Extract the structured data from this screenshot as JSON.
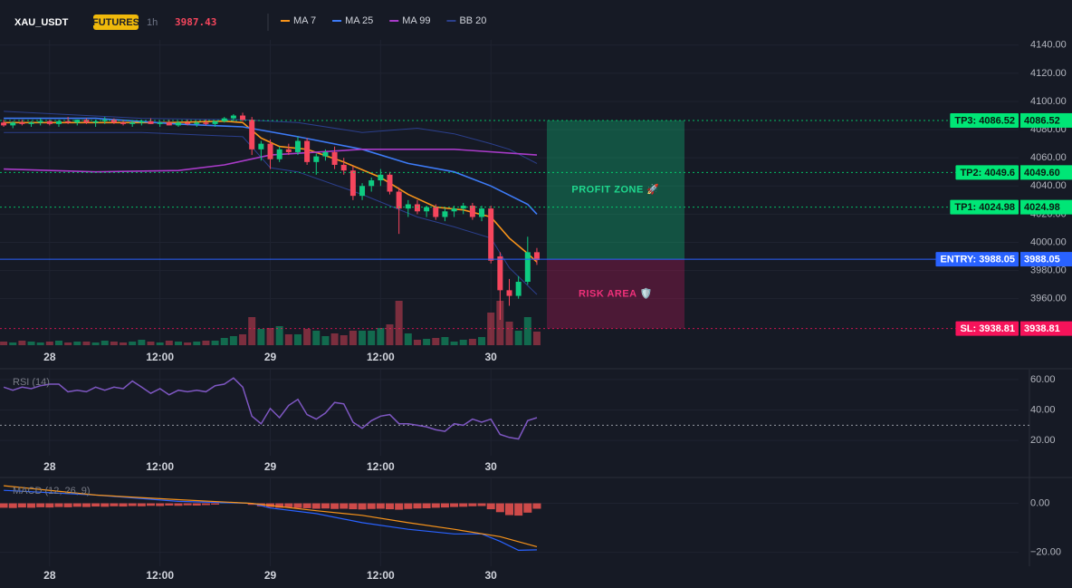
{
  "chart_data": [
    {
      "type": "candlestick",
      "title": "XAU_USDT",
      "badge": "FUTURES",
      "interval": "1h",
      "last_price": 3987.43,
      "open": [
        4085,
        4083,
        4085,
        4084,
        4085,
        4086,
        4084,
        4086,
        4085,
        4087,
        4085,
        4086,
        4087,
        4085,
        4084,
        4085,
        4086,
        4084,
        4085,
        4083,
        4085,
        4084,
        4085,
        4084,
        4086,
        4088,
        4090,
        4087,
        4066,
        4070,
        4059,
        4066,
        4064,
        4072,
        4057,
        4061,
        4064,
        4055,
        4051,
        4033,
        4040,
        4044,
        4048,
        4036,
        4024,
        4027,
        4022,
        4025,
        4018,
        4022,
        4024,
        4026,
        4018,
        4024,
        3990,
        3966,
        3962,
        3972,
        3993
      ],
      "high": [
        4087,
        4086,
        4087,
        4086,
        4088,
        4087,
        4087,
        4089,
        4087,
        4088,
        4087,
        4089,
        4088,
        4087,
        4086,
        4087,
        4088,
        4086,
        4087,
        4086,
        4087,
        4086,
        4087,
        4086,
        4089,
        4091,
        4092,
        4089,
        4072,
        4073,
        4068,
        4070,
        4075,
        4074,
        4063,
        4066,
        4068,
        4060,
        4054,
        4042,
        4046,
        4052,
        4050,
        4039,
        4030,
        4030,
        4026,
        4027,
        4024,
        4026,
        4028,
        4028,
        4026,
        4026,
        3993,
        3974,
        3976,
        4004,
        3996
      ],
      "low": [
        4082,
        4081,
        4083,
        4082,
        4083,
        4083,
        4082,
        4084,
        4083,
        4084,
        4082,
        4084,
        4084,
        4083,
        4082,
        4083,
        4084,
        4082,
        4083,
        4082,
        4083,
        4082,
        4083,
        4082,
        4085,
        4086,
        4086,
        4062,
        4058,
        4052,
        4057,
        4062,
        4062,
        4055,
        4048,
        4058,
        4052,
        4048,
        4030,
        4030,
        4036,
        4040,
        4034,
        4006,
        4018,
        4020,
        4018,
        4016,
        4015,
        4018,
        4020,
        4016,
        4015,
        3985,
        3945,
        3955,
        3960,
        3970,
        3984
      ],
      "close": [
        4083,
        4085,
        4084,
        4085,
        4086,
        4084,
        4086,
        4085,
        4087,
        4085,
        4086,
        4087,
        4085,
        4084,
        4085,
        4086,
        4084,
        4085,
        4083,
        4085,
        4084,
        4085,
        4084,
        4086,
        4088,
        4090,
        4087,
        4066,
        4070,
        4059,
        4066,
        4064,
        4072,
        4057,
        4061,
        4064,
        4055,
        4051,
        4033,
        4040,
        4044,
        4048,
        4036,
        4024,
        4027,
        4022,
        4025,
        4018,
        4022,
        4024,
        4026,
        4018,
        4024,
        3987,
        3966,
        3962,
        3972,
        3993,
        3987.43
      ],
      "volume": [
        4,
        3,
        5,
        4,
        3,
        4,
        5,
        3,
        4,
        4,
        3,
        5,
        4,
        3,
        4,
        6,
        4,
        3,
        5,
        4,
        3,
        4,
        5,
        5,
        8,
        10,
        12,
        31,
        18,
        19,
        21,
        12,
        12,
        18,
        16,
        10,
        13,
        11,
        16,
        16,
        16,
        19,
        23,
        49,
        13,
        6,
        7,
        8,
        9,
        4,
        6,
        7,
        9,
        36,
        49,
        26,
        16,
        31,
        15
      ],
      "volume_ylim": [
        0,
        100
      ],
      "up_color": "#0ecb81",
      "down_color": "#f6465d",
      "series": [
        {
          "name": "MA 7",
          "color": "#f7931a",
          "x": [
            0,
            6,
            12,
            18,
            24,
            26,
            28,
            30,
            33,
            37,
            41,
            44,
            47,
            50,
            53,
            55,
            57,
            58
          ],
          "values": [
            4085,
            4085,
            4085,
            4085,
            4086,
            4085,
            4074,
            4068,
            4066,
            4057,
            4046,
            4034,
            4025,
            4023,
            4018,
            4003,
            3992,
            3986
          ]
        },
        {
          "name": "MA 25",
          "color": "#3d7bf7",
          "x": [
            0,
            10,
            19,
            26,
            32,
            39,
            44,
            49,
            53,
            57,
            58
          ],
          "values": [
            4088,
            4088,
            4084,
            4082,
            4075,
            4066,
            4056,
            4050,
            4040,
            4027,
            4020
          ]
        },
        {
          "name": "MA 99",
          "color": "#a93bc9",
          "x": [
            0,
            10,
            19,
            24,
            29,
            39,
            49,
            58
          ],
          "values": [
            4052,
            4050,
            4051,
            4055,
            4062,
            4066,
            4066,
            4062
          ]
        },
        {
          "name": "BB 20",
          "color": "#2b3f8c",
          "x": [
            0,
            15,
            26,
            29,
            32,
            39,
            45,
            49,
            53,
            55,
            58
          ],
          "upper": [
            4093,
            4088,
            4087,
            4086,
            4085,
            4078,
            4081,
            4077,
            4070,
            4066,
            4056
          ],
          "lower": [
            4078,
            4078,
            4075,
            4053,
            4050,
            4034,
            4018,
            4011,
            4003,
            3982,
            3963
          ]
        }
      ],
      "levels": [
        {
          "label": "TP3: 4086.52",
          "axis_label": "4086.52",
          "value": 4086.52,
          "color": "#00e676",
          "text_color": "#0b1a12"
        },
        {
          "label": "TP2: 4049.6",
          "axis_label": "4049.60",
          "value": 4049.6,
          "color": "#00e676",
          "text_color": "#0b1a12"
        },
        {
          "label": "TP1: 4024.98",
          "axis_label": "4024.98",
          "value": 4024.98,
          "color": "#00e676",
          "text_color": "#0b1a12"
        },
        {
          "label": "ENTRY: 3988.05",
          "axis_label": "3988.05",
          "value": 3988.05,
          "color": "#2962ff",
          "text_color": "#ffffff"
        },
        {
          "label": "SL: 3938.81",
          "axis_label": "3938.81",
          "value": 3938.81,
          "color": "#f6135a",
          "text_color": "#ffffff"
        }
      ],
      "zones": [
        {
          "label": "PROFIT ZONE 🚀",
          "ylim": [
            3988.05,
            4086.52
          ],
          "color": "#0ecb81",
          "text_color": "#1fd88e"
        },
        {
          "label": "RISK AREA 🛡️",
          "ylim": [
            3938.81,
            3988.05
          ],
          "color": "#c2185b",
          "text_color": "#f0307a"
        }
      ],
      "xlim": [
        -0.4,
        110.4
      ],
      "xticks": [
        {
          "value": 5,
          "label": "28"
        },
        {
          "value": 17,
          "label": "12:00"
        },
        {
          "value": 29,
          "label": "29"
        },
        {
          "value": 41,
          "label": "12:00"
        },
        {
          "value": 53,
          "label": "30"
        }
      ],
      "ylim": [
        3927,
        4145
      ],
      "yticks": [
        {
          "value": 3960,
          "label": "3960.00"
        },
        {
          "value": 3980,
          "label": "3980.00"
        },
        {
          "value": 4000,
          "label": "4000.00"
        },
        {
          "value": 4020,
          "label": "4020.00"
        },
        {
          "value": 4040,
          "label": "4040.00"
        },
        {
          "value": 4060,
          "label": "4060.00"
        },
        {
          "value": 4080,
          "label": "4080.00"
        },
        {
          "value": 4100,
          "label": "4100.00"
        },
        {
          "value": 4120,
          "label": "4120.00"
        },
        {
          "value": 4140,
          "label": "4140.00"
        }
      ],
      "grid": true
    },
    {
      "type": "line",
      "title": "RSI (14)",
      "color": "#7e57c2",
      "values": [
        55,
        53,
        55,
        54,
        56,
        57,
        57,
        52,
        53,
        52,
        55,
        53,
        55,
        54,
        59,
        55,
        51,
        54,
        50,
        53,
        52,
        53,
        52,
        56,
        57,
        61,
        55,
        36,
        31,
        41,
        35,
        43,
        47,
        37,
        34,
        38,
        45,
        44,
        32,
        28,
        33,
        36,
        37,
        31,
        31,
        30,
        29,
        27,
        26,
        31,
        30,
        34,
        32,
        34,
        24,
        22,
        21,
        33,
        35
      ],
      "ref_line": 30,
      "ylim": [
        10,
        66.5
      ],
      "yticks": [
        {
          "value": 60,
          "label": "60.00"
        },
        {
          "value": 40,
          "label": "40.00"
        },
        {
          "value": 20,
          "label": "20.00"
        }
      ]
    },
    {
      "type": "macd",
      "title": "MACD (12, 26, 9)",
      "histogram": [
        -1.8,
        -1.9,
        -1.7,
        -1.8,
        -1.6,
        -1.7,
        -1.5,
        -1.6,
        -1.4,
        -1.5,
        -1.3,
        -1.4,
        -1.2,
        -1.3,
        -1.1,
        -1.2,
        -1.0,
        -1.1,
        -0.9,
        -1.0,
        -0.8,
        -0.9,
        -0.7,
        -0.5,
        0.3,
        0.5,
        0.4,
        -0.6,
        -1.2,
        -1.5,
        -1.8,
        -1.6,
        -1.9,
        -2.0,
        -2.2,
        -2.1,
        -2.3,
        -2.2,
        -2.4,
        -2.5,
        -2.3,
        -2.2,
        -2.4,
        -2.6,
        -2.3,
        -2.1,
        -2.0,
        -1.8,
        -1.7,
        -1.5,
        -1.4,
        -1.2,
        -1.1,
        -2.4,
        -3.6,
        -4.8,
        -5.0,
        -3.8,
        -2.2
      ],
      "up_color": "#26a69a",
      "down_color": "#ef5350",
      "series": [
        {
          "color": "#2962ff",
          "x": [
            0,
            10,
            19,
            27,
            29,
            34,
            39,
            44,
            49,
            52,
            54,
            56,
            58
          ],
          "values": [
            5.3,
            3.4,
            0.8,
            0,
            -1.9,
            -4.2,
            -7.9,
            -10.6,
            -12.5,
            -12.5,
            -15.5,
            -19.2,
            -19.0
          ]
        },
        {
          "color": "#f7931a",
          "x": [
            0,
            10,
            19,
            27,
            34,
            39,
            44,
            49,
            54,
            58
          ],
          "values": [
            7.2,
            3.4,
            1.5,
            0,
            -3,
            -4.9,
            -7.9,
            -10.6,
            -13.6,
            -17.7
          ]
        }
      ],
      "ylim": [
        -25.7,
        10.2
      ],
      "yticks": [
        {
          "value": 0,
          "label": "0.00"
        },
        {
          "value": -20,
          "label": "−20.00"
        }
      ]
    }
  ]
}
